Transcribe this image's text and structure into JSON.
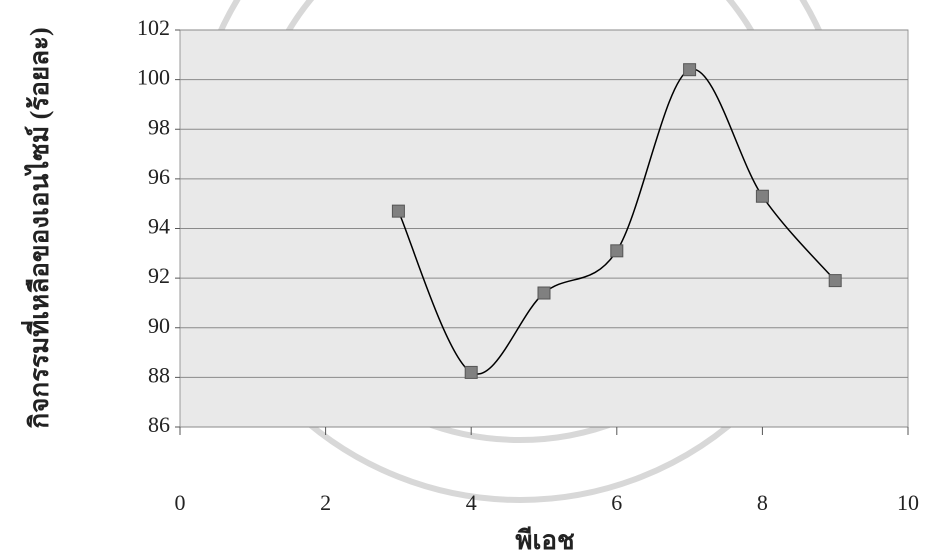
{
  "chart_data": {
    "type": "line",
    "x_label": "พีเอช",
    "y_label": "กิจกรรมที่เหลือของเอนไซม์ (ร้อยละ)",
    "x": [
      3,
      4,
      5,
      6,
      7,
      8,
      9
    ],
    "values": [
      94.7,
      88.2,
      91.4,
      93.1,
      100.4,
      95.3,
      91.9
    ],
    "color": "#000000",
    "marker_color": "#808080",
    "smooth": true,
    "xlim": [
      0,
      10
    ],
    "xticks": [
      0,
      2,
      4,
      6,
      8,
      10
    ],
    "ylim": [
      86,
      102
    ],
    "yticks": [
      86,
      88,
      90,
      92,
      94,
      96,
      98,
      100,
      102
    ],
    "grid": true
  }
}
